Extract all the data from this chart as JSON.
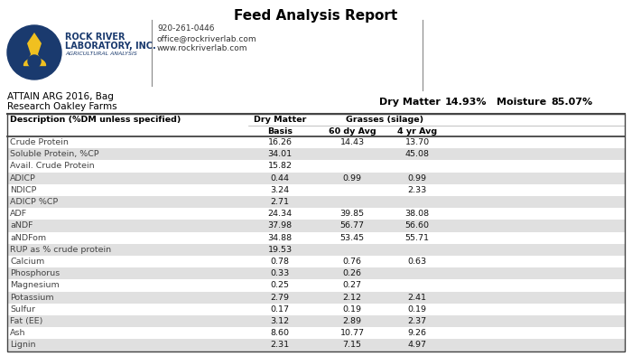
{
  "title": "Feed Analysis Report",
  "contact_line1": "920-261-0446",
  "contact_line2": "office@rockriverlab.com",
  "contact_line3": "www.rockriverlab.com",
  "sample_line1": "ATTAIN ARG 2016, Bag",
  "sample_line2": "Research Oakley Farms",
  "dry_matter_label": "Dry Matter",
  "dry_matter_value": "14.93%",
  "moisture_label": "Moisture",
  "moisture_value": "85.07%",
  "group_header": "Grasses (silage)",
  "rows": [
    [
      "Crude Protein",
      "16.26",
      "14.43",
      "13.70"
    ],
    [
      "Soluble Protein, %CP",
      "34.01",
      "",
      "45.08"
    ],
    [
      "Avail. Crude Protein",
      "15.82",
      "",
      ""
    ],
    [
      "ADICP",
      "0.44",
      "0.99",
      "0.99"
    ],
    [
      "NDICP",
      "3.24",
      "",
      "2.33"
    ],
    [
      "ADICP %CP",
      "2.71",
      "",
      ""
    ],
    [
      "ADF",
      "24.34",
      "39.85",
      "38.08"
    ],
    [
      "aNDF",
      "37.98",
      "56.77",
      "56.60"
    ],
    [
      "aNDFom",
      "34.88",
      "53.45",
      "55.71"
    ],
    [
      "RUP as % crude protein",
      "19.53",
      "",
      ""
    ],
    [
      "Calcium",
      "0.78",
      "0.76",
      "0.63"
    ],
    [
      "Phosphorus",
      "0.33",
      "0.26",
      ""
    ],
    [
      "Magnesium",
      "0.25",
      "0.27",
      ""
    ],
    [
      "Potassium",
      "2.79",
      "2.12",
      "2.41"
    ],
    [
      "Sulfur",
      "0.17",
      "0.19",
      "0.19"
    ],
    [
      "Fat (EE)",
      "3.12",
      "2.89",
      "2.37"
    ],
    [
      "Ash",
      "8.60",
      "10.77",
      "9.26"
    ],
    [
      "Lignin",
      "2.31",
      "7.15",
      "4.97"
    ]
  ],
  "bg_color": "#ffffff",
  "row_even_bg": "#ffffff",
  "row_odd_bg": "#e0e0e0",
  "table_border_color": "#444444",
  "logo_circle_color": "#1a3a6e",
  "logo_text_color": "#1a3a6e",
  "logo_yellow": "#f0c020",
  "title_color": "#000000",
  "divider_color": "#888888",
  "contact_color": "#333333",
  "header_bold_color": "#000000"
}
